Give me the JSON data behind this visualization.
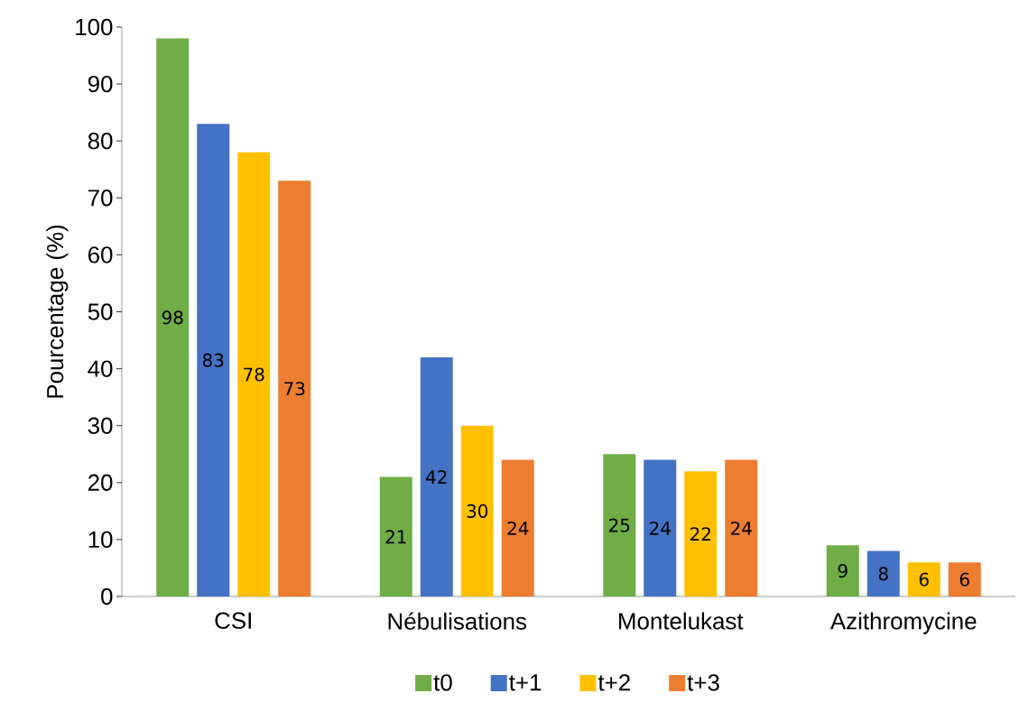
{
  "chart_data": {
    "type": "bar",
    "ylabel": "Pourcentage (%)",
    "categories": [
      "CSI",
      "Nébulisations",
      "Montelukast",
      "Azithromycine"
    ],
    "series": [
      {
        "name": "t0",
        "color": "#70ad47",
        "values": [
          98,
          21,
          25,
          9
        ]
      },
      {
        "name": "t+1",
        "color": "#4472c4",
        "values": [
          83,
          42,
          24,
          8
        ]
      },
      {
        "name": "t+2",
        "color": "#ffc000",
        "values": [
          78,
          30,
          22,
          6
        ]
      },
      {
        "name": "t+3",
        "color": "#ed7d31",
        "values": [
          73,
          24,
          24,
          6
        ]
      }
    ],
    "ylim": [
      0,
      100
    ],
    "yticks": [
      0,
      10,
      20,
      30,
      40,
      50,
      60,
      70,
      80,
      90,
      100
    ],
    "data_labels": true,
    "grid": false,
    "legend": "bottom"
  }
}
